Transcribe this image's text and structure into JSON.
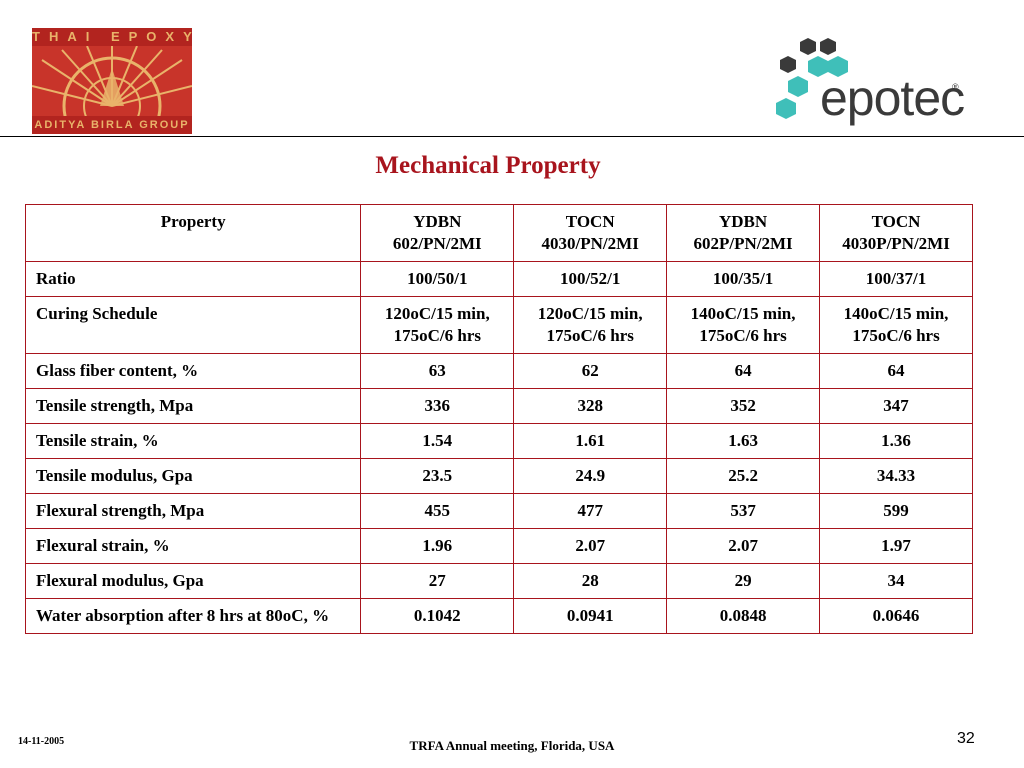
{
  "header": {
    "logo_left": {
      "top_text": "THAI EPOXY",
      "bottom_text": "ADITYA BIRLA GROUP",
      "colors": {
        "background": "#c8342a",
        "band": "#b2241f",
        "accent": "#e9b36a"
      }
    },
    "logo_right": {
      "word": "epotec",
      "registered": "®",
      "hex_colors": {
        "teal": "#3fbfb9",
        "dark": "#3a3a3a"
      }
    }
  },
  "slide": {
    "title": "Mechanical Property",
    "title_color": "#a8141d"
  },
  "table": {
    "columns": [
      {
        "line1": "Property",
        "line2": ""
      },
      {
        "line1": "YDBN",
        "line2": "602/PN/2MI"
      },
      {
        "line1": "TOCN",
        "line2": "4030/PN/2MI"
      },
      {
        "line1": "YDBN",
        "line2": "602P/PN/2MI"
      },
      {
        "line1": "TOCN",
        "line2": "4030P/PN/2MI"
      }
    ],
    "rows": [
      {
        "label": "Ratio",
        "values": [
          "100/50/1",
          "100/52/1",
          "100/35/1",
          "100/37/1"
        ]
      },
      {
        "label": "Curing Schedule",
        "values": [
          "120oC/15 min,\n175oC/6 hrs",
          "120oC/15 min,\n175oC/6 hrs",
          "140oC/15 min,\n175oC/6 hrs",
          "140oC/15 min,\n175oC/6 hrs"
        ]
      },
      {
        "label": "Glass fiber content, %",
        "values": [
          "63",
          "62",
          "64",
          "64"
        ]
      },
      {
        "label": "Tensile strength, Mpa",
        "values": [
          "336",
          "328",
          "352",
          "347"
        ]
      },
      {
        "label": "Tensile strain, %",
        "values": [
          "1.54",
          "1.61",
          "1.63",
          "1.36"
        ]
      },
      {
        "label": "Tensile modulus, Gpa",
        "values": [
          "23.5",
          "24.9",
          "25.2",
          "34.33"
        ]
      },
      {
        "label": "Flexural strength, Mpa",
        "values": [
          "455",
          "477",
          "537",
          "599"
        ]
      },
      {
        "label": "Flexural strain, %",
        "values": [
          "1.96",
          "2.07",
          "2.07",
          "1.97"
        ]
      },
      {
        "label": "Flexural modulus, Gpa",
        "values": [
          "27",
          "28",
          "29",
          "34"
        ]
      },
      {
        "label": "Water absorption after 8 hrs at 80oC, %",
        "values": [
          "0.1042",
          "0.0941",
          "0.0848",
          "0.0646"
        ]
      }
    ]
  },
  "footer": {
    "date": "14-11-2005",
    "center": "TRFA Annual meeting, Florida, USA",
    "page": "32"
  }
}
